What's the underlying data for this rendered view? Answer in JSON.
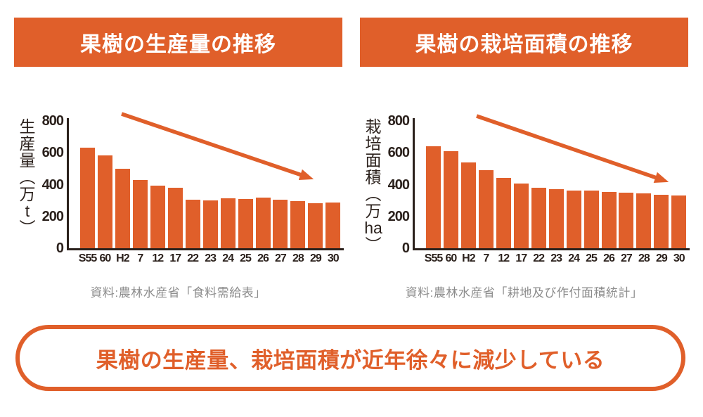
{
  "accent_color": "#e05f2a",
  "ink_color": "#2b211c",
  "muted_color": "#8c8c8c",
  "banner": {
    "text": "果樹の生産量、栽培面積が近年徐々に減少している"
  },
  "chart_data": [
    {
      "type": "bar",
      "title": "果樹の生産量の推移",
      "ylabel": "生産量(万t)",
      "ylabel_vertical_segments": [
        "生",
        "産",
        "量",
        "︵",
        "万",
        "t",
        "︶"
      ],
      "categories": [
        "S55",
        "60",
        "H2",
        "7",
        "12",
        "17",
        "22",
        "23",
        "24",
        "25",
        "26",
        "27",
        "28",
        "29",
        "30"
      ],
      "values": [
        630,
        585,
        500,
        430,
        392,
        380,
        304,
        300,
        313,
        311,
        320,
        303,
        296,
        283,
        287
      ],
      "ylim": [
        0,
        800
      ],
      "yticks": [
        0,
        200,
        400,
        600,
        800
      ],
      "bar_color": "#e05f2a",
      "grid": false,
      "legend": false,
      "annotation": {
        "type": "arrow",
        "direction": "down-right",
        "meaning": "decline"
      },
      "source": "資料:農林水産省「食料需給表」"
    },
    {
      "type": "bar",
      "title": "果樹の栽培面積の推移",
      "ylabel": "栽培面積(万ha)",
      "ylabel_vertical_segments": [
        "栽",
        "培",
        "面",
        "積",
        "︵",
        "万",
        "ha",
        "︶"
      ],
      "categories": [
        "S55",
        "60",
        "H2",
        "7",
        "12",
        "17",
        "22",
        "23",
        "24",
        "25",
        "26",
        "27",
        "28",
        "29",
        "30"
      ],
      "values": [
        640,
        610,
        540,
        490,
        440,
        405,
        380,
        370,
        363,
        362,
        355,
        350,
        345,
        337,
        330
      ],
      "ylim": [
        0,
        800
      ],
      "yticks": [
        0,
        200,
        400,
        600,
        800
      ],
      "bar_color": "#e05f2a",
      "grid": false,
      "legend": false,
      "annotation": {
        "type": "arrow",
        "direction": "down-right",
        "meaning": "decline"
      },
      "source": "資料:農林水産省「耕地及び作付面積統計」"
    }
  ]
}
